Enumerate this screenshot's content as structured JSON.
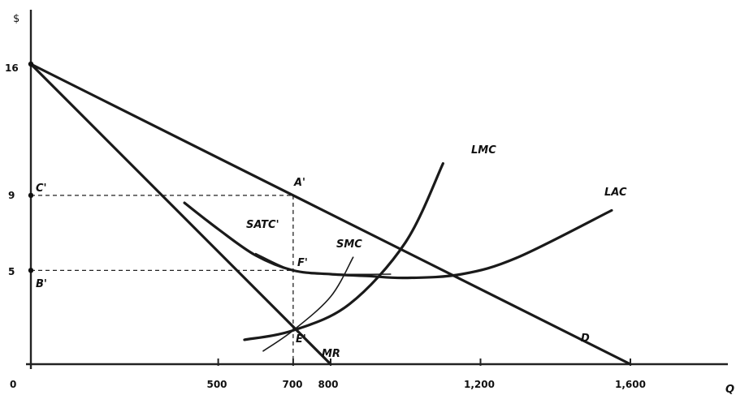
{
  "chart_data": {
    "type": "line",
    "xlabel": "Q",
    "ylabel": "$",
    "xlim": [
      0,
      1650
    ],
    "ylim": [
      0,
      16.5
    ],
    "x_ticks": [
      {
        "value": 500,
        "label": "500"
      },
      {
        "value": 700,
        "label": "700"
      },
      {
        "value": 800,
        "label": "800"
      },
      {
        "value": 1200,
        "label": "1,200"
      },
      {
        "value": 1600,
        "label": "1,600"
      }
    ],
    "y_ticks": [
      {
        "value": 16,
        "label": "16"
      },
      {
        "value": 9,
        "label": "9"
      },
      {
        "value": 5,
        "label": "5"
      }
    ],
    "origin_label": "0",
    "series": [
      {
        "name": "D",
        "points": [
          [
            0,
            16
          ],
          [
            1600,
            0
          ]
        ]
      },
      {
        "name": "MR",
        "points": [
          [
            0,
            16
          ],
          [
            800,
            0
          ]
        ]
      },
      {
        "name": "LMC",
        "points": [
          [
            570,
            1.3
          ],
          [
            700,
            1.8
          ],
          [
            850,
            3.2
          ],
          [
            1000,
            6.5
          ],
          [
            1100,
            10.7
          ]
        ]
      },
      {
        "name": "LAC",
        "points": [
          [
            1550,
            8.2
          ],
          [
            1300,
            5.7
          ],
          [
            1150,
            4.8
          ],
          [
            1000,
            4.6
          ],
          [
            900,
            4.7
          ],
          [
            800,
            4.8
          ],
          [
            700,
            5.0
          ],
          [
            600,
            5.8
          ],
          [
            500,
            7.2
          ],
          [
            410,
            8.6
          ]
        ]
      },
      {
        "name": "SATC'",
        "points": [
          [
            600,
            5.9
          ],
          [
            700,
            5.0
          ],
          [
            800,
            4.8
          ],
          [
            960,
            4.8
          ]
        ]
      },
      {
        "name": "SMC",
        "points": [
          [
            620,
            0.7
          ],
          [
            700,
            1.8
          ],
          [
            800,
            3.6
          ],
          [
            860,
            5.7
          ]
        ]
      }
    ],
    "points": [
      {
        "label": "A'",
        "x": 700,
        "y": 9
      },
      {
        "label": "F'",
        "x": 700,
        "y": 5
      },
      {
        "label": "E'",
        "x": 700,
        "y": 1.8
      },
      {
        "label": "C'",
        "x": 0,
        "y": 9
      },
      {
        "label": "B'",
        "x": 0,
        "y": 5
      }
    ],
    "guides": [
      {
        "x": 700,
        "y": 9
      },
      {
        "x": 700,
        "y": 5
      }
    ]
  }
}
